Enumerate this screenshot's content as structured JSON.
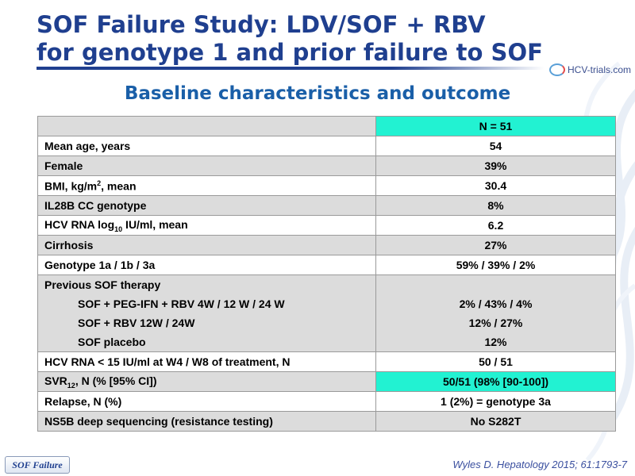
{
  "header": {
    "title_line1": "SOF Failure Study: LDV/SOF + RBV",
    "title_line2": "for genotype 1 and prior failure to SOF",
    "logo_text": "HCV-trials.com"
  },
  "subtitle": "Baseline characteristics and outcome",
  "table": {
    "header_value": "N = 51",
    "rows": [
      {
        "label": "Mean age, years",
        "value": "54"
      },
      {
        "label": "Female",
        "value": "39%"
      },
      {
        "label_pre": "BMI, kg/m",
        "label_sup": "2",
        "label_post": ", mean",
        "value": "30.4"
      },
      {
        "label": "IL28B CC genotype",
        "value": "8%"
      },
      {
        "label_pre": "HCV RNA log",
        "label_sub": "10",
        "label_post": " IU/ml, mean",
        "value": "6.2"
      },
      {
        "label": "Cirrhosis",
        "value": "27%"
      },
      {
        "label": "Genotype 1a / 1b / 3a",
        "value": "59% / 39% / 2%"
      },
      {
        "label": "Previous SOF therapy",
        "sublabels": [
          "SOF + PEG-IFN + RBV 4W / 12 W / 24 W",
          "SOF + RBV 12W / 24W",
          "SOF placebo"
        ],
        "subvalues": [
          "2% / 43% / 4%",
          "12% / 27%",
          "12%"
        ]
      },
      {
        "label": "HCV RNA < 15 IU/ml at W4 / W8 of treatment, N",
        "value": "50 / 51"
      },
      {
        "label_pre": "SVR",
        "label_sub": "12",
        "label_post": ", N (% [95% CI])",
        "value": "50/51 (98% [90-100])"
      },
      {
        "label": "Relapse, N (%)",
        "value": "1 (2%) = genotype 3a"
      },
      {
        "label": "NS5B deep sequencing (resistance testing)",
        "value": "No S282T"
      }
    ]
  },
  "footer": {
    "tag": "SOF Failure",
    "citation": "Wyles D. Hepatology 2015; 61:1793-7"
  },
  "colors": {
    "title": "#1f3f8f",
    "subtitle": "#1a5fa8",
    "highlight": "#22f2d2",
    "row_shade": "#dcdcdc"
  }
}
